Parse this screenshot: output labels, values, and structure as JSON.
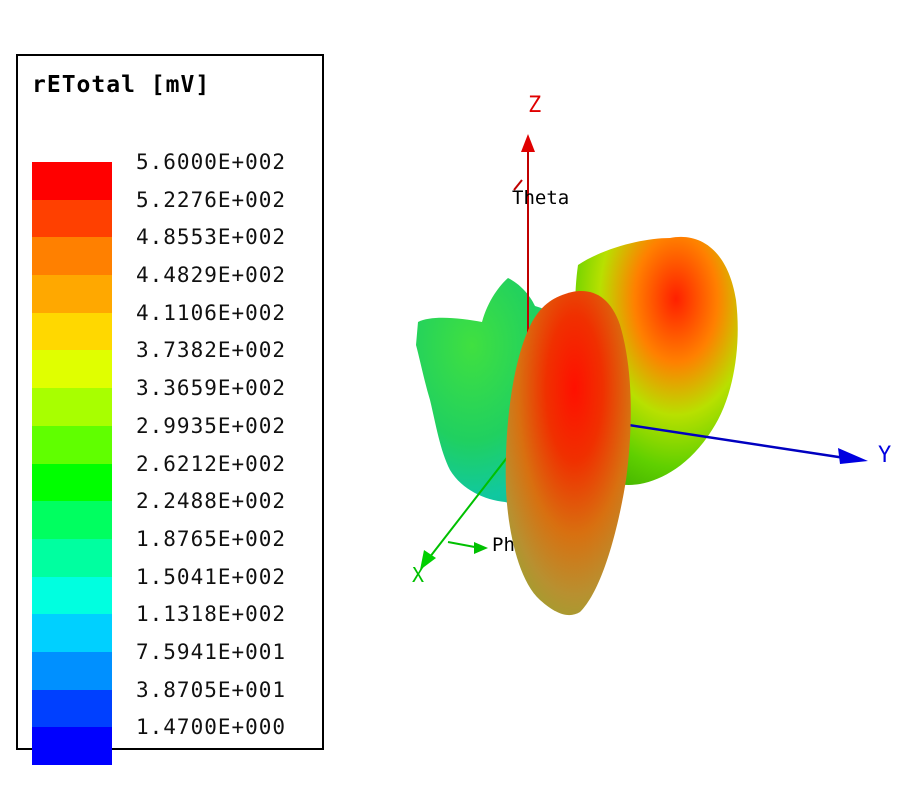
{
  "legend": {
    "title": "rETotal [mV]",
    "levels": [
      {
        "label": "5.6000E+002",
        "color": "#ff0000"
      },
      {
        "label": "5.2276E+002",
        "color": "#ff4000"
      },
      {
        "label": "4.8553E+002",
        "color": "#ff8000"
      },
      {
        "label": "4.4829E+002",
        "color": "#ffa800"
      },
      {
        "label": "4.1106E+002",
        "color": "#ffd800"
      },
      {
        "label": "3.7382E+002",
        "color": "#e0ff00"
      },
      {
        "label": "3.3659E+002",
        "color": "#a8ff00"
      },
      {
        "label": "2.9935E+002",
        "color": "#60ff00"
      },
      {
        "label": "2.6212E+002",
        "color": "#00ff00"
      },
      {
        "label": "2.2488E+002",
        "color": "#00ff60"
      },
      {
        "label": "1.8765E+002",
        "color": "#00ffa0"
      },
      {
        "label": "1.5041E+002",
        "color": "#00ffe0"
      },
      {
        "label": "1.1318E+002",
        "color": "#00d0ff"
      },
      {
        "label": "7.5941E+001",
        "color": "#0090ff"
      },
      {
        "label": "3.8705E+001",
        "color": "#0040ff"
      },
      {
        "label": "1.4700E+000",
        "color": "#0000ff"
      }
    ]
  },
  "axes": {
    "z_label": "Z",
    "y_label": "Y",
    "x_label": "X",
    "theta_label": "Theta",
    "phi_label": "Phi",
    "z_color": "#e00000",
    "y_color": "#0000e0",
    "x_color": "#00d000"
  }
}
